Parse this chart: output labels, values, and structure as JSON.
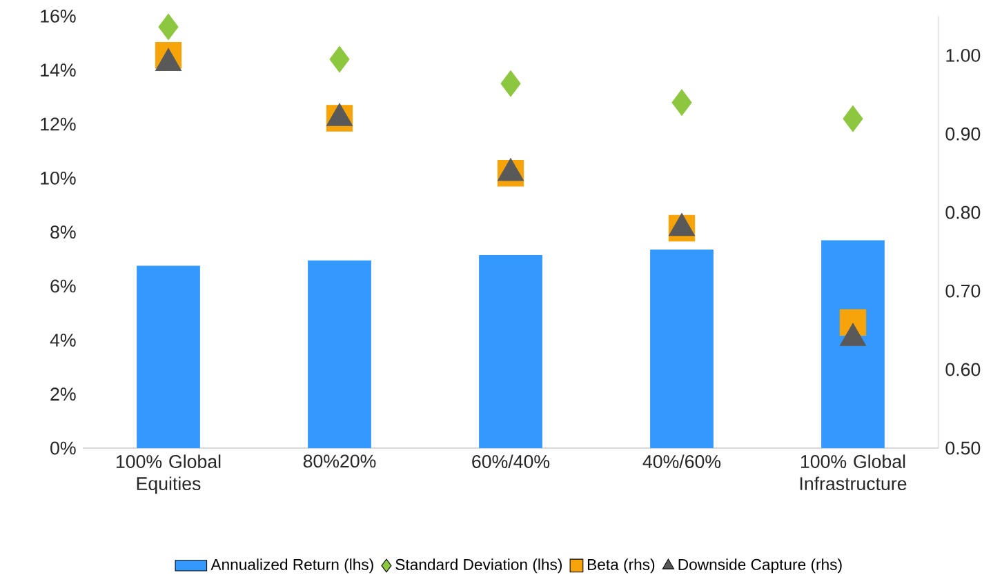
{
  "chart_data": {
    "type": "bar",
    "categories": [
      "100% Global Equities",
      "80%20%",
      "60%/40%",
      "40%/60%",
      "100% Global Infrastructure"
    ],
    "series": [
      {
        "name": "Annualized Return (lhs)",
        "color": "#3399ff",
        "values": [
          6.75,
          6.95,
          7.15,
          7.35,
          7.7
        ]
      },
      {
        "name": "Standard Deviation (lhs)",
        "type": "scatter",
        "marker": "diamond",
        "color": "#8dc63f",
        "values": [
          15.6,
          14.4,
          13.5,
          12.8,
          12.2
        ]
      },
      {
        "name": "Beta (rhs)",
        "type": "scatter",
        "marker": "square",
        "color": "#f7a30a",
        "axis": "y2",
        "values": [
          1.0,
          0.92,
          0.85,
          0.78,
          0.66
        ]
      },
      {
        "name": "Downside Capture (rhs)",
        "type": "scatter",
        "marker": "triangle",
        "color": "#595959",
        "axis": "y2",
        "values": [
          0.99,
          0.92,
          0.85,
          0.78,
          0.64
        ]
      }
    ],
    "ylim": [
      0,
      16
    ],
    "yticks": [
      {
        "value": 0,
        "label": "0%"
      },
      {
        "value": 2,
        "label": "2%"
      },
      {
        "value": 4,
        "label": "4%"
      },
      {
        "value": 6,
        "label": "6%"
      },
      {
        "value": 8,
        "label": "8%"
      },
      {
        "value": 10,
        "label": "10%"
      },
      {
        "value": 12,
        "label": "12%"
      },
      {
        "value": 14,
        "label": "14%"
      },
      {
        "value": 16,
        "label": "16%"
      }
    ],
    "y2lim": [
      0.5,
      1.05
    ],
    "y2ticks": [
      {
        "value": 0.5,
        "label": "0.50"
      },
      {
        "value": 0.6,
        "label": "0.60"
      },
      {
        "value": 0.7,
        "label": "0.70"
      },
      {
        "value": 0.8,
        "label": "0.80"
      },
      {
        "value": 0.9,
        "label": "0.90"
      },
      {
        "value": 1.0,
        "label": "1.00"
      }
    ],
    "legend": "bottom"
  }
}
